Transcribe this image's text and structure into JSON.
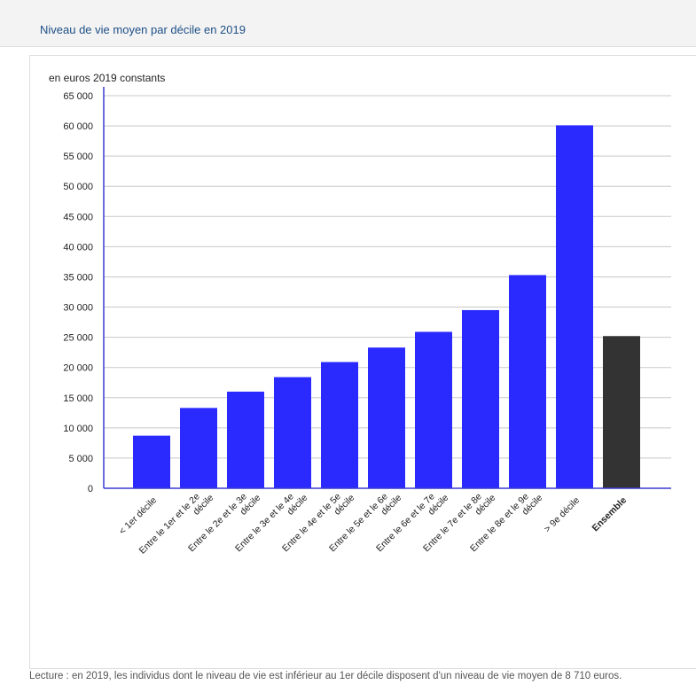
{
  "header": {
    "title": "Niveau de vie moyen par décile en 2019"
  },
  "footer": {
    "reading_note": "Lecture : en 2019, les individus dont le niveau de vie est inférieur au 1er décile disposent d'un niveau de vie moyen de 8 710 euros."
  },
  "colors": {
    "decile_bar": "#2a2aff",
    "ensemble_bar": "#333333",
    "axis": "#3b3bd1",
    "grid": "#c8c8c8"
  },
  "chart_data": {
    "type": "bar",
    "title": "Niveau de vie moyen par décile en 2019",
    "unit_label": "en euros 2019 constants",
    "xlabel": "",
    "ylabel": "",
    "ylim": [
      0,
      65000
    ],
    "yticks": [
      0,
      5000,
      10000,
      15000,
      20000,
      25000,
      30000,
      35000,
      40000,
      45000,
      50000,
      55000,
      60000,
      65000
    ],
    "ytick_labels": [
      "0",
      "5 000",
      "10 000",
      "15 000",
      "20 000",
      "25 000",
      "30 000",
      "35 000",
      "40 000",
      "45 000",
      "50 000",
      "55 000",
      "60 000",
      "65 000"
    ],
    "grid": true,
    "categories": [
      "< 1er décile",
      "Entre le 1er et le 2e décile",
      "Entre le 2e et le 3e décile",
      "Entre le 3e et le 4e décile",
      "Entre le 4e et le 5e décile",
      "Entre le 5e et le 6e décile",
      "Entre le 6e et le 7e décile",
      "Entre le 7e et le 8e décile",
      "Entre le 8e et le 9e décile",
      "> 9e décile",
      "Ensemble"
    ],
    "category_lines": [
      [
        "< 1er décile"
      ],
      [
        "Entre le 1er et le 2e",
        "décile"
      ],
      [
        "Entre le 2e et le 3e",
        "décile"
      ],
      [
        "Entre le 3e et le 4e",
        "décile"
      ],
      [
        "Entre le 4e et le 5e",
        "décile"
      ],
      [
        "Entre le 5e et le 6e",
        "décile"
      ],
      [
        "Entre le 6e et le 7e",
        "décile"
      ],
      [
        "Entre le 7e et le 8e",
        "décile"
      ],
      [
        "Entre le 8e et le 9e",
        "décile"
      ],
      [
        "> 9e décile"
      ],
      [
        "Ensemble"
      ]
    ],
    "values": [
      8710,
      13300,
      16000,
      18400,
      20900,
      23300,
      25900,
      29500,
      35300,
      60100,
      25200
    ],
    "highlight": "Ensemble"
  }
}
